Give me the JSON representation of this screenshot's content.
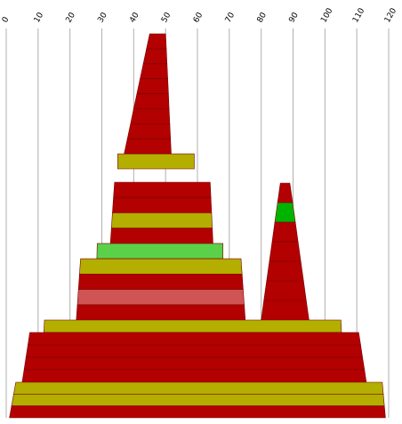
{
  "chart_data": {
    "type": "area",
    "xlim": [
      0,
      120
    ],
    "x_ticks": [
      "0",
      "10",
      "20",
      "30",
      "40",
      "50",
      "60",
      "70",
      "80",
      "90",
      "100",
      "110",
      "120"
    ],
    "grid": "vertical",
    "colors": {
      "red": "#b30000",
      "olive": "#b3ae00",
      "light_green": "#5bd14a",
      "green": "#00b300",
      "pink": "#cf5555",
      "edge": "#7a0000"
    },
    "layers": [
      {
        "shape": 1,
        "x_bottom": [
          36,
          52
        ],
        "x_top": [
          45,
          50
        ],
        "color": "red"
      },
      {
        "shape": 1,
        "x_bottom": [
          36,
          52
        ],
        "x_top": [
          45,
          50
        ],
        "color": "red"
      },
      {
        "shape": 1,
        "x_bottom": [
          36,
          52
        ],
        "x_top": [
          45,
          50
        ],
        "color": "red"
      },
      {
        "shape": 1,
        "x_bottom": [
          36,
          52
        ],
        "x_top": [
          45,
          50
        ],
        "color": "red"
      },
      {
        "shape": 1,
        "x_bottom": [
          36,
          52
        ],
        "x_top": [
          45,
          50
        ],
        "color": "red"
      },
      {
        "shape": 1,
        "x_bottom": [
          36,
          52
        ],
        "x_top": [
          45,
          50
        ],
        "color": "red"
      },
      {
        "shape": 1,
        "x_bottom": [
          36,
          52
        ],
        "x_top": [
          45,
          50
        ],
        "color": "red"
      },
      {
        "shape": 1,
        "x_bottom": [
          36,
          52
        ],
        "x_top": [
          45,
          50
        ],
        "color": "red"
      },
      {
        "shape": 1,
        "x_bottom": [
          35,
          59
        ],
        "x_top": [
          35,
          59
        ],
        "color": "olive"
      },
      {
        "shape": 2,
        "x_bottom": [
          31,
          66
        ],
        "x_top": [
          34,
          64
        ],
        "color": "red"
      },
      {
        "shape": 2,
        "x_bottom": [
          31,
          66
        ],
        "x_top": [
          34,
          64
        ],
        "color": "red"
      },
      {
        "shape": 2,
        "x_bottom": [
          31,
          66
        ],
        "x_top": [
          34,
          64
        ],
        "color": "olive"
      },
      {
        "shape": 2,
        "x_bottom": [
          31,
          66
        ],
        "x_top": [
          34,
          64
        ],
        "color": "red"
      },
      {
        "shape": 2,
        "x_bottom": [
          28,
          68
        ],
        "x_top": [
          29,
          68
        ],
        "color": "light_green"
      },
      {
        "shape": 2,
        "x_bottom": [
          22,
          75
        ],
        "x_top": [
          25,
          72
        ],
        "color": "olive"
      },
      {
        "shape": 2,
        "x_bottom": [
          22,
          75
        ],
        "x_top": [
          25,
          72
        ],
        "color": "red"
      },
      {
        "shape": 2,
        "x_bottom": [
          22,
          75
        ],
        "x_top": [
          25,
          72
        ],
        "color": "pink"
      },
      {
        "shape": 2,
        "x_bottom": [
          22,
          75
        ],
        "x_top": [
          25,
          72
        ],
        "color": "red"
      },
      {
        "shape": 3,
        "x_bottom": [
          80,
          95
        ],
        "x_top": [
          86,
          89
        ],
        "color": "red"
      },
      {
        "shape": 3,
        "x_bottom": [
          80,
          95
        ],
        "x_top": [
          86,
          89
        ],
        "color": "green"
      },
      {
        "shape": 3,
        "x_bottom": [
          80,
          95
        ],
        "x_top": [
          86,
          89
        ],
        "color": "red"
      },
      {
        "shape": 3,
        "x_bottom": [
          80,
          95
        ],
        "x_top": [
          86,
          89
        ],
        "color": "red"
      },
      {
        "shape": 3,
        "x_bottom": [
          80,
          95
        ],
        "x_top": [
          86,
          89
        ],
        "color": "red"
      },
      {
        "shape": 3,
        "x_bottom": [
          80,
          95
        ],
        "x_top": [
          86,
          89
        ],
        "color": "red"
      },
      {
        "shape": 3,
        "x_bottom": [
          80,
          95
        ],
        "x_top": [
          86,
          89
        ],
        "color": "red"
      },
      {
        "shape": 4,
        "x_bottom": [
          11,
          106
        ],
        "x_top": [
          12,
          105
        ],
        "color": "olive"
      },
      {
        "shape": 4,
        "x_bottom": [
          5,
          113
        ],
        "x_top": [
          8,
          110
        ],
        "color": "red"
      },
      {
        "shape": 4,
        "x_bottom": [
          5,
          113
        ],
        "x_top": [
          8,
          110
        ],
        "color": "red"
      },
      {
        "shape": 4,
        "x_bottom": [
          5,
          113
        ],
        "x_top": [
          8,
          110
        ],
        "color": "red"
      },
      {
        "shape": 4,
        "x_bottom": [
          5,
          113
        ],
        "x_top": [
          8,
          110
        ],
        "color": "red"
      },
      {
        "shape": 5,
        "x_bottom": [
          1,
          119
        ],
        "x_top": [
          3,
          118
        ],
        "color": "olive"
      },
      {
        "shape": 5,
        "x_bottom": [
          1,
          119
        ],
        "x_top": [
          3,
          118
        ],
        "color": "olive"
      },
      {
        "shape": 5,
        "x_bottom": [
          1,
          119
        ],
        "x_top": [
          3,
          118
        ],
        "color": "red"
      }
    ]
  }
}
